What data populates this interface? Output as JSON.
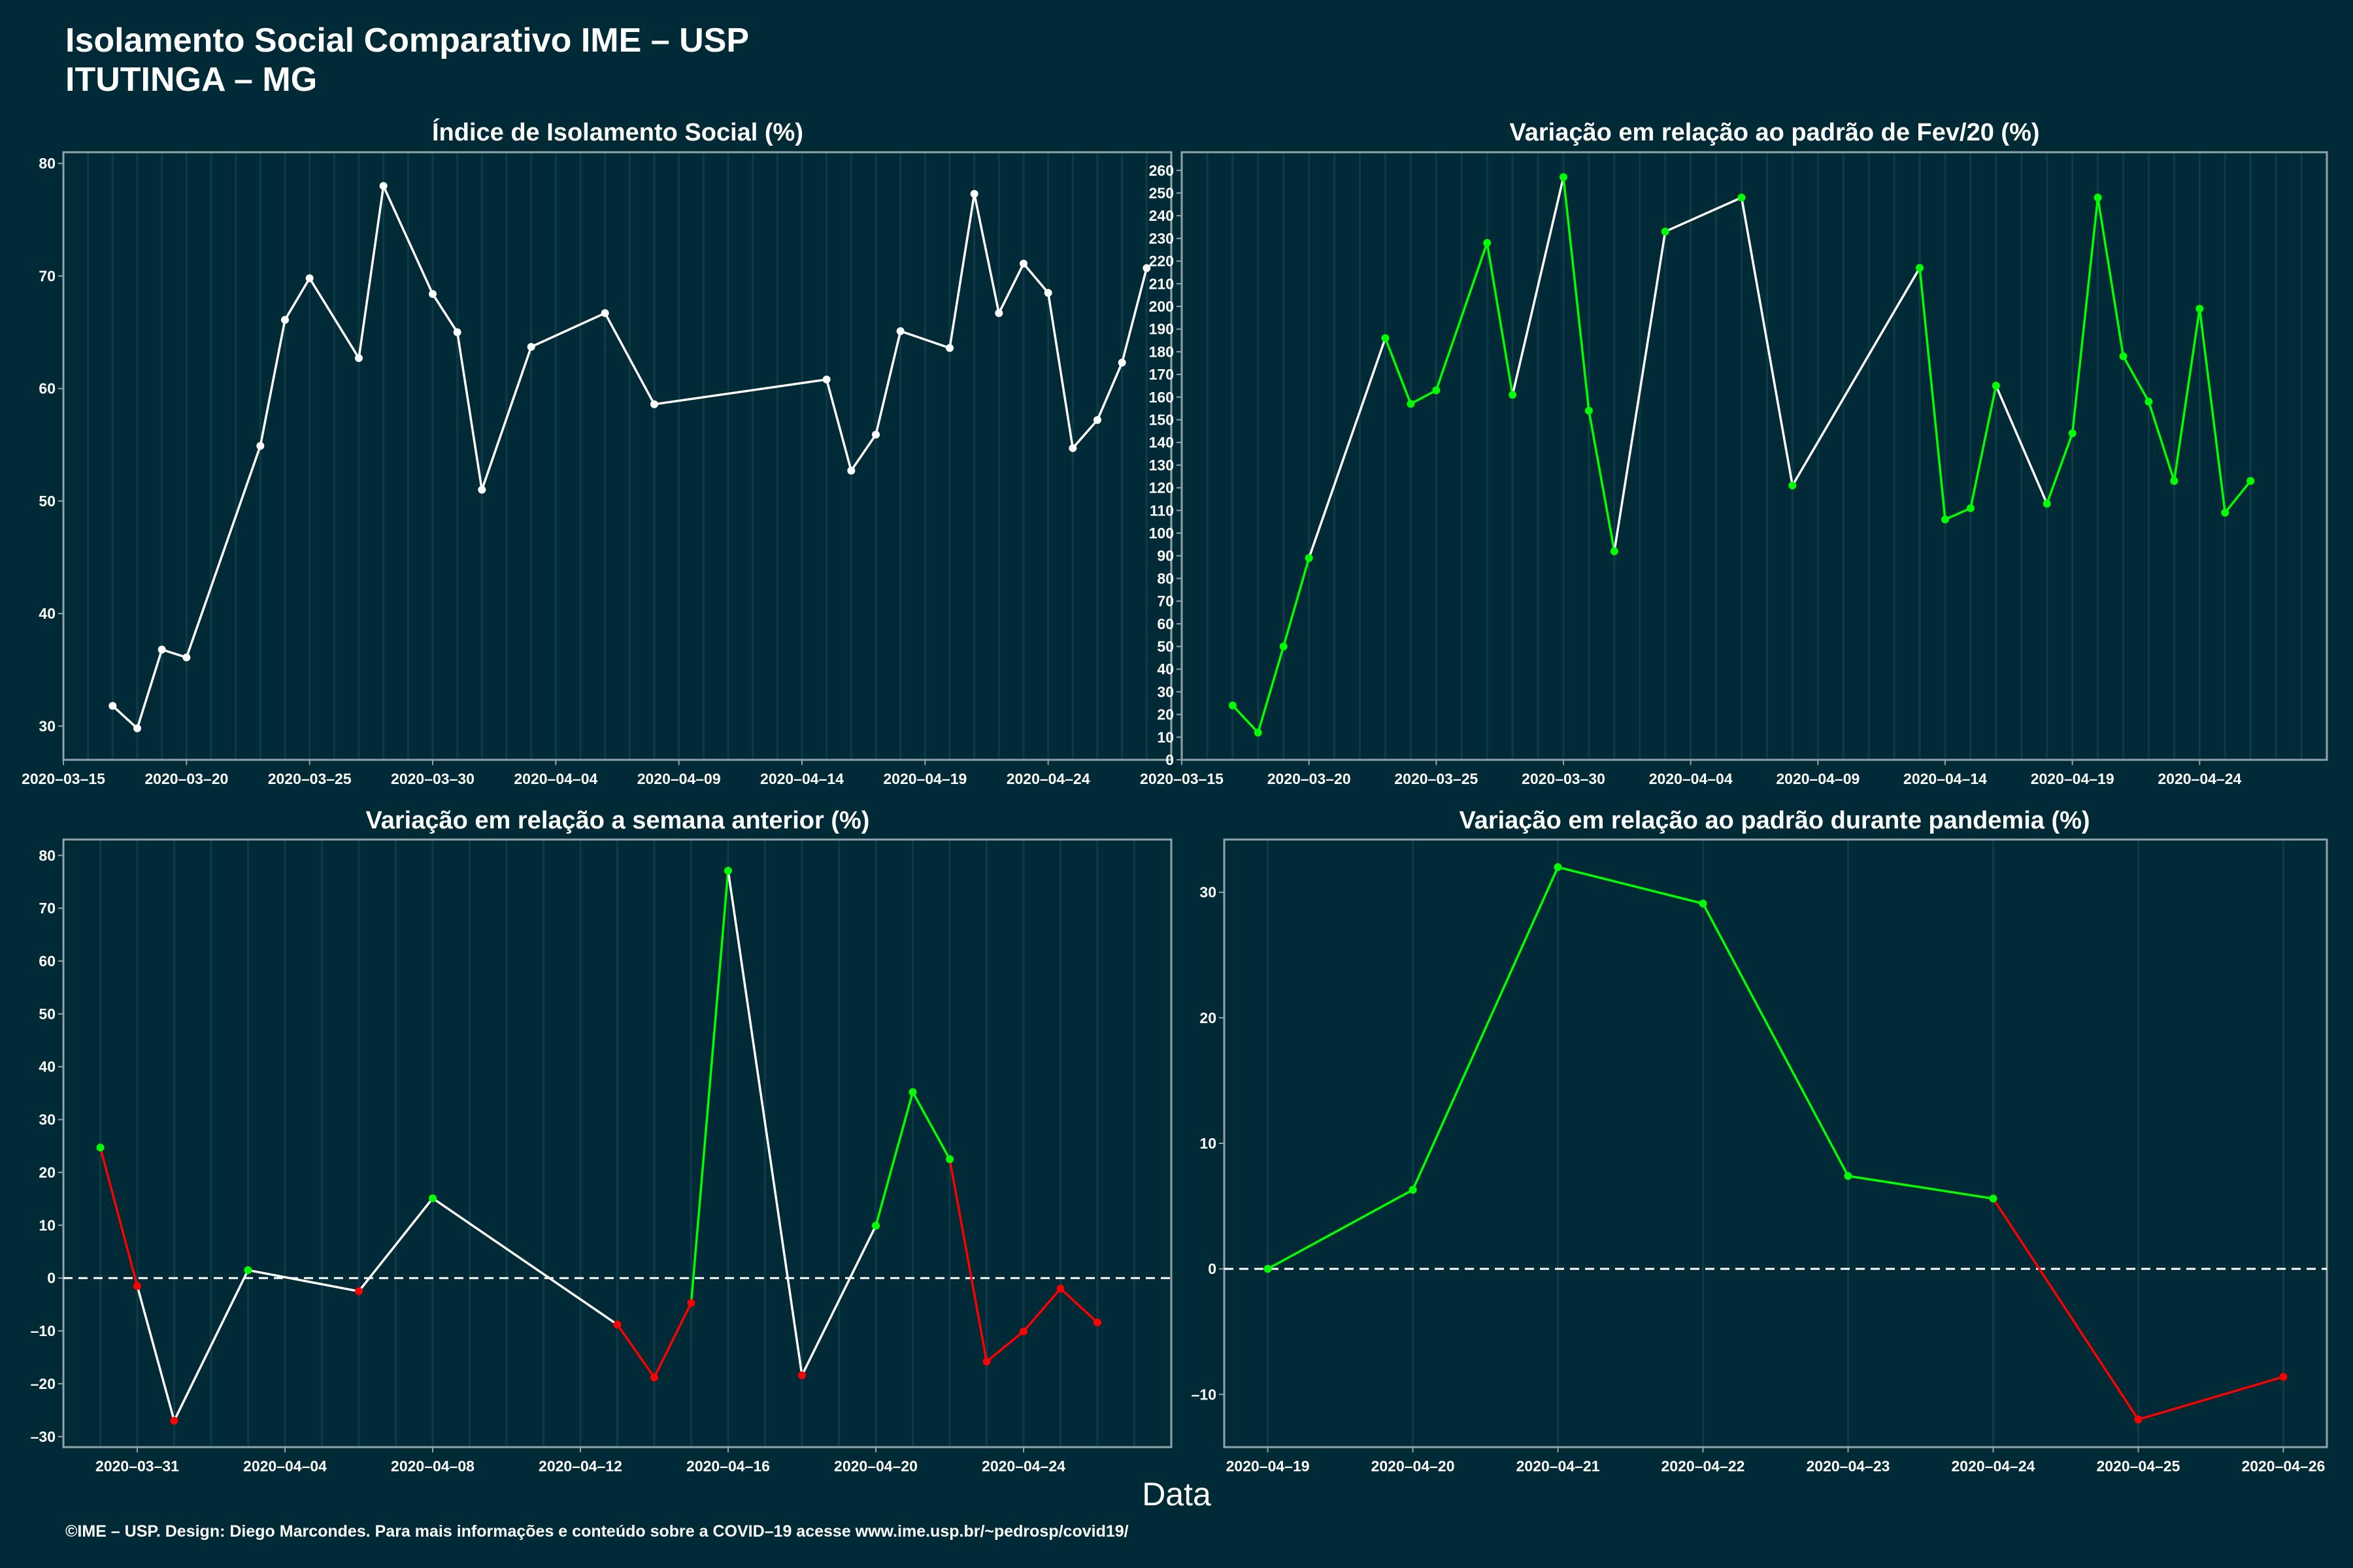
{
  "header": {
    "title_line1": "Isolamento Social Comparativo IME – USP",
    "title_line2": "ITUTINGA – MG"
  },
  "xlabel": "Data",
  "footer": "©IME – USP. Design: Diego Marcondes. Para mais informações e conteúdo sobre a COVID–19 acesse www.ime.usp.br/~pedrosp/covid19/",
  "colors": {
    "background": "#002b36",
    "neutral": "#ffffff",
    "up": "#00ff00",
    "down": "#ff0000",
    "frame": "#8fa3a9"
  },
  "chart_data": [
    {
      "id": "p1",
      "type": "line",
      "title": "Índice de Isolamento Social (%)",
      "xlim": [
        "2020-03-15",
        "2020-04-29"
      ],
      "ylim": [
        27,
        81
      ],
      "xticks": [
        "2020-03-15",
        "2020-03-20",
        "2020-03-25",
        "2020-03-30",
        "2020-04-04",
        "2020-04-09",
        "2020-04-14",
        "2020-04-19",
        "2020-04-24"
      ],
      "yticks": [
        30,
        40,
        50,
        60,
        70,
        80
      ],
      "series": [
        {
          "color": "#ffffff",
          "x": [
            "2020-03-17",
            "2020-03-18",
            "2020-03-19",
            "2020-03-20",
            "2020-03-23",
            "2020-03-24",
            "2020-03-25",
            "2020-03-27",
            "2020-03-28",
            "2020-03-30",
            "2020-03-31",
            "2020-04-01",
            "2020-04-03",
            "2020-04-06",
            "2020-04-08",
            "2020-04-15",
            "2020-04-16",
            "2020-04-17",
            "2020-04-18",
            "2020-04-20",
            "2020-04-21",
            "2020-04-22",
            "2020-04-23",
            "2020-04-24",
            "2020-04-25",
            "2020-04-26",
            "2020-04-27",
            "2020-04-28"
          ],
          "y": [
            31.8,
            29.8,
            36.8,
            36.1,
            54.9,
            66.1,
            69.8,
            62.7,
            78.0,
            68.4,
            65.0,
            51.0,
            63.7,
            66.7,
            58.6,
            60.8,
            52.7,
            55.9,
            65.1,
            63.6,
            77.3,
            66.7,
            71.1,
            68.5,
            54.7,
            57.2,
            62.3,
            70.7
          ]
        }
      ]
    },
    {
      "id": "p2",
      "type": "line",
      "title": "Variação em relação ao padrão de Fev/20 (%)",
      "xlim": [
        "2020-03-15",
        "2020-04-29"
      ],
      "ylim": [
        0,
        268
      ],
      "xticks": [
        "2020-03-15",
        "2020-03-20",
        "2020-03-25",
        "2020-03-30",
        "2020-04-04",
        "2020-04-09",
        "2020-04-14",
        "2020-04-19",
        "2020-04-24"
      ],
      "yticks": [
        0,
        10,
        20,
        30,
        40,
        50,
        60,
        70,
        80,
        90,
        100,
        110,
        120,
        130,
        140,
        150,
        160,
        170,
        180,
        190,
        200,
        210,
        220,
        230,
        240,
        250,
        260
      ],
      "x": [
        "2020-03-17",
        "2020-03-18",
        "2020-03-19",
        "2020-03-20",
        "2020-03-23",
        "2020-03-24",
        "2020-03-25",
        "2020-03-27",
        "2020-03-28",
        "2020-03-30",
        "2020-03-31",
        "2020-04-01",
        "2020-04-03",
        "2020-04-06",
        "2020-04-08",
        "2020-04-13",
        "2020-04-14",
        "2020-04-15",
        "2020-04-16",
        "2020-04-18",
        "2020-04-19",
        "2020-04-20",
        "2020-04-21",
        "2020-04-22",
        "2020-04-23",
        "2020-04-24",
        "2020-04-25",
        "2020-04-26"
      ],
      "y": [
        24,
        12,
        50,
        89,
        186,
        157,
        163,
        228,
        161,
        257,
        154,
        92,
        233,
        248,
        121,
        217,
        106,
        111,
        165,
        113,
        144,
        248,
        178,
        158,
        123,
        199,
        109,
        123
      ],
      "segment_colors": [
        "#00ff00",
        "#00ff00",
        "#00ff00",
        "#ffffff",
        "#00ff00",
        "#00ff00",
        "#00ff00",
        "#00ff00",
        "#ffffff",
        "#00ff00",
        "#00ff00",
        "#ffffff",
        "#ffffff",
        "#ffffff",
        "#ffffff",
        "#00ff00",
        "#00ff00",
        "#00ff00",
        "#ffffff",
        "#00ff00",
        "#00ff00",
        "#00ff00",
        "#00ff00",
        "#00ff00",
        "#00ff00",
        "#00ff00",
        "#00ff00"
      ],
      "point_colors": [
        "#00ff00",
        "#00ff00",
        "#00ff00",
        "#00ff00",
        "#00ff00",
        "#00ff00",
        "#00ff00",
        "#00ff00",
        "#00ff00",
        "#00ff00",
        "#00ff00",
        "#00ff00",
        "#00ff00",
        "#00ff00",
        "#00ff00",
        "#00ff00",
        "#00ff00",
        "#00ff00",
        "#00ff00",
        "#00ff00",
        "#00ff00",
        "#00ff00",
        "#00ff00",
        "#00ff00",
        "#00ff00",
        "#00ff00",
        "#00ff00",
        "#00ff00"
      ]
    },
    {
      "id": "p3",
      "type": "line",
      "title": "Variação em relação a semana anterior (%)",
      "xlim": [
        "2020-03-29",
        "2020-04-28"
      ],
      "ylim": [
        -32,
        83
      ],
      "zero_line": true,
      "xticks": [
        "2020-03-31",
        "2020-04-04",
        "2020-04-08",
        "2020-04-12",
        "2020-04-16",
        "2020-04-20",
        "2020-04-24"
      ],
      "yticks": [
        -30,
        -20,
        -10,
        0,
        10,
        20,
        30,
        40,
        50,
        60,
        70,
        80
      ],
      "x": [
        "2020-03-30",
        "2020-03-31",
        "2020-04-01",
        "2020-04-03",
        "2020-04-06",
        "2020-04-08",
        "2020-04-13",
        "2020-04-14",
        "2020-04-15",
        "2020-04-16",
        "2020-04-18",
        "2020-04-20",
        "2020-04-21",
        "2020-04-22",
        "2020-04-23",
        "2020-04-24",
        "2020-04-25",
        "2020-04-26"
      ],
      "y": [
        24.7,
        -1.5,
        -27.0,
        1.5,
        -2.5,
        15.1,
        -8.8,
        -18.8,
        -4.7,
        77.1,
        -18.4,
        9.9,
        35.2,
        22.5,
        -15.8,
        -10.1,
        -2.0,
        -8.4
      ],
      "segment_colors": [
        "#ff0000",
        "#ffffff",
        "#ffffff",
        "#ffffff",
        "#ffffff",
        "#ffffff",
        "#ff0000",
        "#ff0000",
        "#00ff00",
        "#ffffff",
        "#ffffff",
        "#00ff00",
        "#00ff00",
        "#ff0000",
        "#ff0000",
        "#ff0000",
        "#ff0000"
      ],
      "point_colors": [
        "#00ff00",
        "#ff0000",
        "#ff0000",
        "#00ff00",
        "#ff0000",
        "#00ff00",
        "#ff0000",
        "#ff0000",
        "#ff0000",
        "#00ff00",
        "#ff0000",
        "#00ff00",
        "#00ff00",
        "#00ff00",
        "#ff0000",
        "#ff0000",
        "#ff0000",
        "#ff0000"
      ]
    },
    {
      "id": "p4",
      "type": "line",
      "title": "Variação em relação ao padrão durante pandemia (%)",
      "xlim": [
        "2020-04-18.7",
        "2020-04-26.3"
      ],
      "ylim": [
        -14.2,
        34.2
      ],
      "zero_line": true,
      "xticks": [
        "2020-04-19",
        "2020-04-20",
        "2020-04-21",
        "2020-04-22",
        "2020-04-23",
        "2020-04-24",
        "2020-04-25",
        "2020-04-26"
      ],
      "yticks": [
        -10,
        0,
        10,
        20,
        30
      ],
      "x": [
        "2020-04-19",
        "2020-04-20",
        "2020-04-21",
        "2020-04-22",
        "2020-04-23",
        "2020-04-24",
        "2020-04-25",
        "2020-04-26"
      ],
      "y": [
        0,
        6.3,
        32.0,
        29.1,
        7.4,
        5.6,
        -12.0,
        -8.6
      ],
      "segment_colors": [
        "#00ff00",
        "#00ff00",
        "#00ff00",
        "#00ff00",
        "#00ff00",
        "#ff0000",
        "#ff0000"
      ],
      "point_colors": [
        "#00ff00",
        "#00ff00",
        "#00ff00",
        "#00ff00",
        "#00ff00",
        "#00ff00",
        "#ff0000",
        "#ff0000"
      ]
    }
  ]
}
